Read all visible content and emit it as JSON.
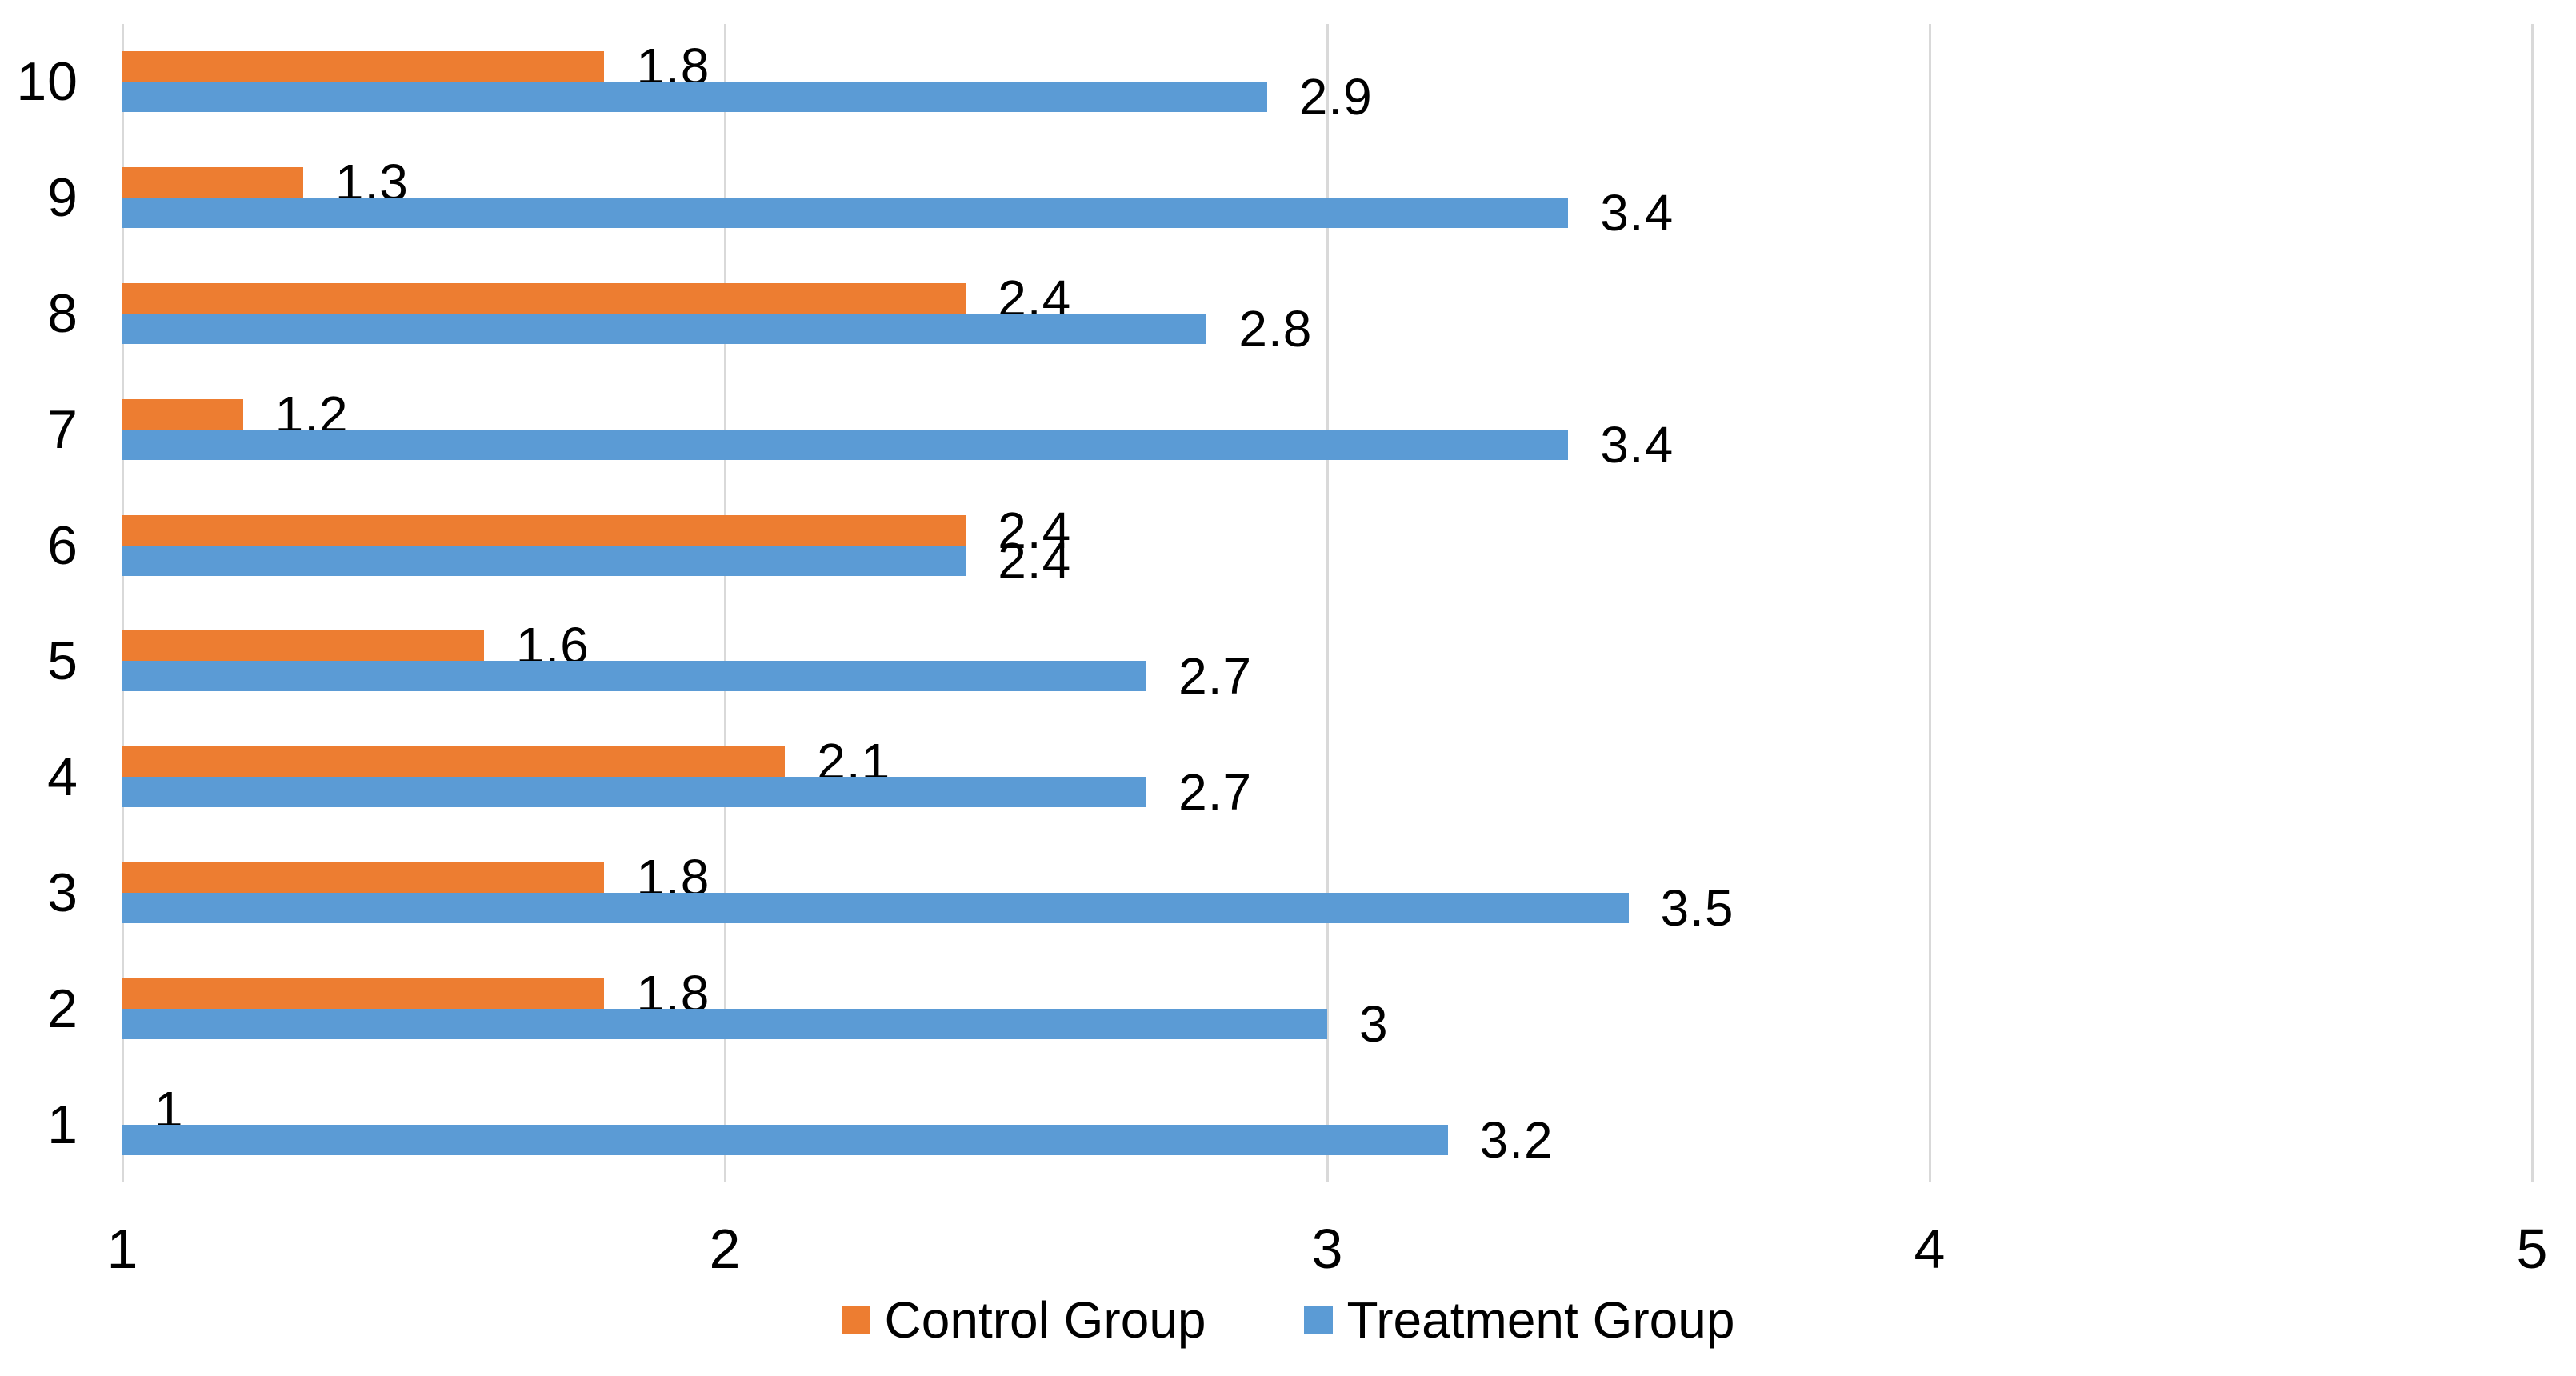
{
  "chart_data": {
    "type": "bar",
    "orientation": "horizontal",
    "title": "",
    "xlabel": "",
    "ylabel": "",
    "categories": [
      "10",
      "9",
      "8",
      "7",
      "6",
      "5",
      "4",
      "3",
      "2",
      "1"
    ],
    "series": [
      {
        "name": "Control Group",
        "color": "#ED7D31",
        "values": [
          1.8,
          1.3,
          2.4,
          1.2,
          2.4,
          1.6,
          2.1,
          1.8,
          1.8,
          1
        ]
      },
      {
        "name": "Treatment Group",
        "color": "#5B9BD5",
        "values": [
          2.9,
          3.4,
          2.8,
          3.4,
          2.4,
          2.7,
          2.7,
          3.5,
          3,
          3.2
        ]
      }
    ],
    "data_labels": true,
    "x_ticks": [
      "1",
      "2",
      "3",
      "4",
      "5"
    ],
    "xlim": [
      1,
      5
    ],
    "grid": "vertical",
    "legend_position": "bottom"
  },
  "colors": {
    "gridline": "#D9D9D9",
    "text": "#000000",
    "background": "#FFFFFF"
  }
}
